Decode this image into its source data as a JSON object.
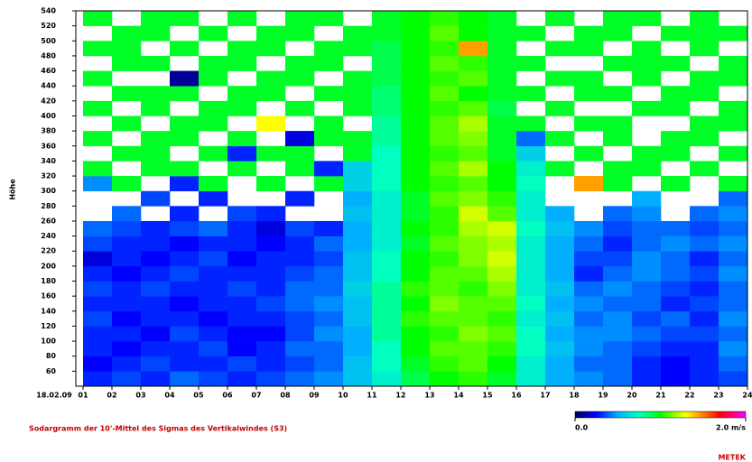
{
  "chart_data": {
    "type": "heatmap",
    "title": "Sodargramm der 10'-Mittel des Sigmas des Vertikalwindes (S3)",
    "y_label": "Höhe",
    "brand": "METEK",
    "xlim": [
      0.75,
      24
    ],
    "xticks": [
      {
        "value": 0,
        "label": "18.02.09"
      },
      {
        "value": 1,
        "label": "01"
      },
      {
        "value": 2,
        "label": "02"
      },
      {
        "value": 3,
        "label": "03"
      },
      {
        "value": 4,
        "label": "04"
      },
      {
        "value": 5,
        "label": "05"
      },
      {
        "value": 6,
        "label": "06"
      },
      {
        "value": 7,
        "label": "07"
      },
      {
        "value": 8,
        "label": "08"
      },
      {
        "value": 9,
        "label": "09"
      },
      10,
      11,
      12,
      13,
      14,
      15,
      16,
      17,
      18,
      19,
      20,
      21,
      22,
      23,
      24
    ],
    "ylim": [
      40,
      540
    ],
    "yticks": [
      60,
      80,
      100,
      120,
      140,
      160,
      180,
      200,
      220,
      240,
      260,
      280,
      300,
      320,
      340,
      360,
      380,
      400,
      420,
      440,
      460,
      480,
      500,
      520,
      540
    ],
    "x": [
      1,
      2,
      3,
      4,
      5,
      6,
      7,
      8,
      9,
      10,
      11,
      12,
      13,
      14,
      15,
      16,
      17,
      18,
      19,
      20,
      21,
      22,
      23
    ],
    "y": [
      50,
      70,
      90,
      110,
      130,
      150,
      170,
      190,
      210,
      230,
      250,
      270,
      290,
      310,
      330,
      350,
      370,
      390,
      410,
      430,
      450,
      470,
      490,
      510,
      530
    ],
    "z": [
      [
        0.3,
        0.35,
        0.3,
        0.4,
        0.35,
        0.3,
        0.35,
        0.4,
        0.45,
        0.55,
        0.7,
        0.9,
        1.0,
        1.05,
        0.95,
        0.7,
        0.5,
        0.45,
        0.4,
        0.3,
        0.25,
        0.3,
        0.35
      ],
      [
        0.25,
        0.3,
        0.35,
        0.3,
        0.3,
        0.35,
        0.3,
        0.35,
        0.4,
        0.55,
        0.75,
        0.95,
        1.05,
        1.1,
        1.0,
        0.7,
        0.5,
        0.4,
        0.4,
        0.3,
        0.25,
        0.3,
        0.4
      ],
      [
        0.3,
        0.25,
        0.3,
        0.3,
        0.35,
        0.25,
        0.3,
        0.4,
        0.4,
        0.5,
        0.75,
        1.0,
        1.1,
        1.1,
        1.05,
        0.75,
        0.55,
        0.45,
        0.4,
        0.35,
        0.3,
        0.3,
        0.45
      ],
      [
        0.3,
        0.3,
        0.25,
        0.35,
        0.3,
        0.25,
        0.25,
        0.35,
        0.45,
        0.5,
        0.8,
        1.0,
        1.05,
        1.15,
        1.1,
        0.75,
        0.5,
        0.45,
        0.45,
        0.4,
        0.35,
        0.35,
        0.4
      ],
      [
        0.35,
        0.25,
        0.3,
        0.3,
        0.25,
        0.3,
        0.3,
        0.35,
        0.4,
        0.55,
        0.8,
        1.05,
        1.1,
        1.1,
        1.05,
        0.7,
        0.55,
        0.4,
        0.45,
        0.35,
        0.4,
        0.3,
        0.45
      ],
      [
        0.3,
        0.3,
        0.3,
        0.25,
        0.3,
        0.3,
        0.35,
        0.4,
        0.45,
        0.55,
        0.8,
        1.0,
        1.15,
        1.1,
        1.1,
        0.75,
        0.5,
        0.45,
        0.4,
        0.4,
        0.3,
        0.35,
        0.4
      ],
      [
        0.35,
        0.3,
        0.35,
        0.3,
        0.3,
        0.35,
        0.3,
        0.4,
        0.4,
        0.6,
        0.8,
        1.05,
        1.1,
        1.05,
        1.15,
        0.7,
        0.55,
        0.4,
        0.45,
        0.4,
        0.35,
        0.3,
        0.4
      ],
      [
        0.3,
        0.25,
        0.3,
        0.35,
        0.3,
        0.3,
        0.3,
        0.35,
        0.4,
        0.55,
        0.75,
        1.0,
        1.1,
        1.1,
        1.2,
        0.7,
        0.5,
        0.3,
        0.4,
        0.45,
        0.4,
        0.35,
        0.45
      ],
      [
        0.2,
        0.3,
        0.25,
        0.3,
        0.35,
        0.25,
        0.3,
        0.3,
        0.35,
        0.55,
        0.75,
        1.0,
        1.05,
        1.15,
        1.25,
        0.7,
        0.5,
        0.35,
        0.35,
        0.45,
        0.4,
        0.3,
        0.4
      ],
      [
        0.35,
        0.3,
        0.3,
        0.25,
        0.3,
        0.3,
        0.25,
        0.3,
        0.4,
        0.5,
        0.7,
        0.95,
        1.1,
        1.15,
        1.2,
        0.7,
        0.5,
        0.4,
        0.3,
        0.4,
        0.45,
        0.4,
        0.45
      ],
      [
        0.4,
        0.35,
        0.3,
        0.35,
        0.4,
        0.3,
        0.2,
        0.35,
        0.3,
        0.5,
        0.7,
        1.0,
        1.05,
        1.2,
        1.25,
        0.75,
        0.55,
        0.45,
        0.35,
        0.4,
        0.4,
        0.35,
        0.4
      ],
      [
        null,
        0.4,
        null,
        0.3,
        null,
        0.35,
        0.3,
        null,
        null,
        0.55,
        0.7,
        0.95,
        1.05,
        1.25,
        1.1,
        0.7,
        0.5,
        null,
        0.4,
        0.45,
        null,
        0.4,
        0.45
      ],
      [
        null,
        null,
        0.35,
        null,
        0.3,
        null,
        null,
        0.3,
        null,
        0.5,
        0.7,
        0.95,
        1.1,
        1.15,
        1.05,
        0.7,
        null,
        null,
        null,
        0.5,
        null,
        null,
        0.4
      ],
      [
        0.45,
        0.95,
        null,
        0.3,
        0.95,
        null,
        0.95,
        null,
        0.95,
        0.6,
        0.75,
        1.0,
        1.05,
        1.1,
        1.0,
        0.75,
        null,
        1.45,
        0.95,
        null,
        0.95,
        null,
        0.95
      ],
      [
        0.95,
        null,
        0.95,
        0.95,
        null,
        0.95,
        null,
        0.95,
        0.3,
        0.6,
        0.75,
        1.0,
        1.1,
        1.2,
        1.0,
        0.7,
        0.95,
        null,
        0.95,
        0.95,
        null,
        0.95,
        null
      ],
      [
        null,
        0.95,
        0.95,
        null,
        0.95,
        0.3,
        0.95,
        0.95,
        null,
        0.95,
        0.75,
        1.0,
        1.05,
        1.1,
        0.95,
        0.6,
        null,
        0.95,
        null,
        0.95,
        0.95,
        null,
        0.95
      ],
      [
        0.95,
        null,
        0.95,
        0.95,
        null,
        0.95,
        null,
        0.2,
        0.95,
        0.95,
        0.8,
        1.0,
        1.1,
        1.15,
        0.95,
        0.4,
        0.95,
        null,
        0.95,
        null,
        0.95,
        0.95,
        null
      ],
      [
        null,
        0.95,
        null,
        0.95,
        0.95,
        null,
        1.3,
        null,
        0.95,
        null,
        0.8,
        1.0,
        1.1,
        1.2,
        0.95,
        0.95,
        null,
        0.95,
        0.95,
        null,
        null,
        0.95,
        0.95
      ],
      [
        0.95,
        null,
        0.95,
        null,
        0.95,
        0.95,
        null,
        0.95,
        null,
        0.95,
        0.85,
        1.0,
        1.05,
        1.1,
        0.9,
        null,
        0.95,
        null,
        null,
        0.95,
        0.95,
        null,
        0.95
      ],
      [
        null,
        0.95,
        0.95,
        0.95,
        null,
        0.95,
        0.95,
        null,
        0.95,
        0.95,
        0.85,
        1.0,
        1.1,
        1.0,
        0.95,
        0.95,
        null,
        0.95,
        0.95,
        null,
        0.95,
        0.95,
        null
      ],
      [
        0.95,
        null,
        null,
        0.1,
        0.95,
        null,
        0.95,
        0.95,
        null,
        0.95,
        0.9,
        1.0,
        1.05,
        1.1,
        0.95,
        null,
        0.95,
        0.95,
        null,
        0.95,
        null,
        0.95,
        0.95
      ],
      [
        null,
        0.95,
        0.95,
        null,
        0.95,
        0.95,
        null,
        0.95,
        0.95,
        null,
        0.9,
        1.0,
        1.1,
        1.05,
        0.95,
        0.95,
        null,
        null,
        0.95,
        0.95,
        0.95,
        null,
        0.95
      ],
      [
        0.95,
        0.95,
        null,
        0.95,
        null,
        0.95,
        0.95,
        null,
        0.95,
        0.95,
        0.9,
        1.0,
        1.05,
        1.45,
        0.95,
        null,
        0.95,
        0.95,
        null,
        0.95,
        null,
        0.95,
        null
      ],
      [
        null,
        0.95,
        0.95,
        null,
        0.95,
        null,
        0.95,
        0.95,
        null,
        0.95,
        0.95,
        1.0,
        1.1,
        1.0,
        0.95,
        0.95,
        null,
        0.95,
        0.95,
        null,
        0.95,
        0.95,
        0.95
      ],
      [
        0.95,
        null,
        0.95,
        0.95,
        null,
        0.95,
        null,
        0.95,
        0.95,
        null,
        0.95,
        1.0,
        1.05,
        1.0,
        0.95,
        null,
        0.95,
        null,
        0.95,
        0.95,
        null,
        0.95,
        null
      ]
    ],
    "zlim": [
      0,
      2
    ],
    "colorscale": [
      [
        0,
        "#000050"
      ],
      [
        0.25,
        "#0000ff"
      ],
      [
        0.5,
        "#00b0ff"
      ],
      [
        0.75,
        "#00ffc0"
      ],
      [
        1.0,
        "#00ff00"
      ],
      [
        1.3,
        "#ffff00"
      ],
      [
        1.5,
        "#ff8000"
      ],
      [
        1.7,
        "#ff0000"
      ],
      [
        2.0,
        "#ff00ff"
      ]
    ],
    "colorbar_ticks": [
      {
        "value": 0,
        "label": "0.0"
      },
      {
        "value": 2,
        "label": "2.0 m/s"
      }
    ]
  }
}
